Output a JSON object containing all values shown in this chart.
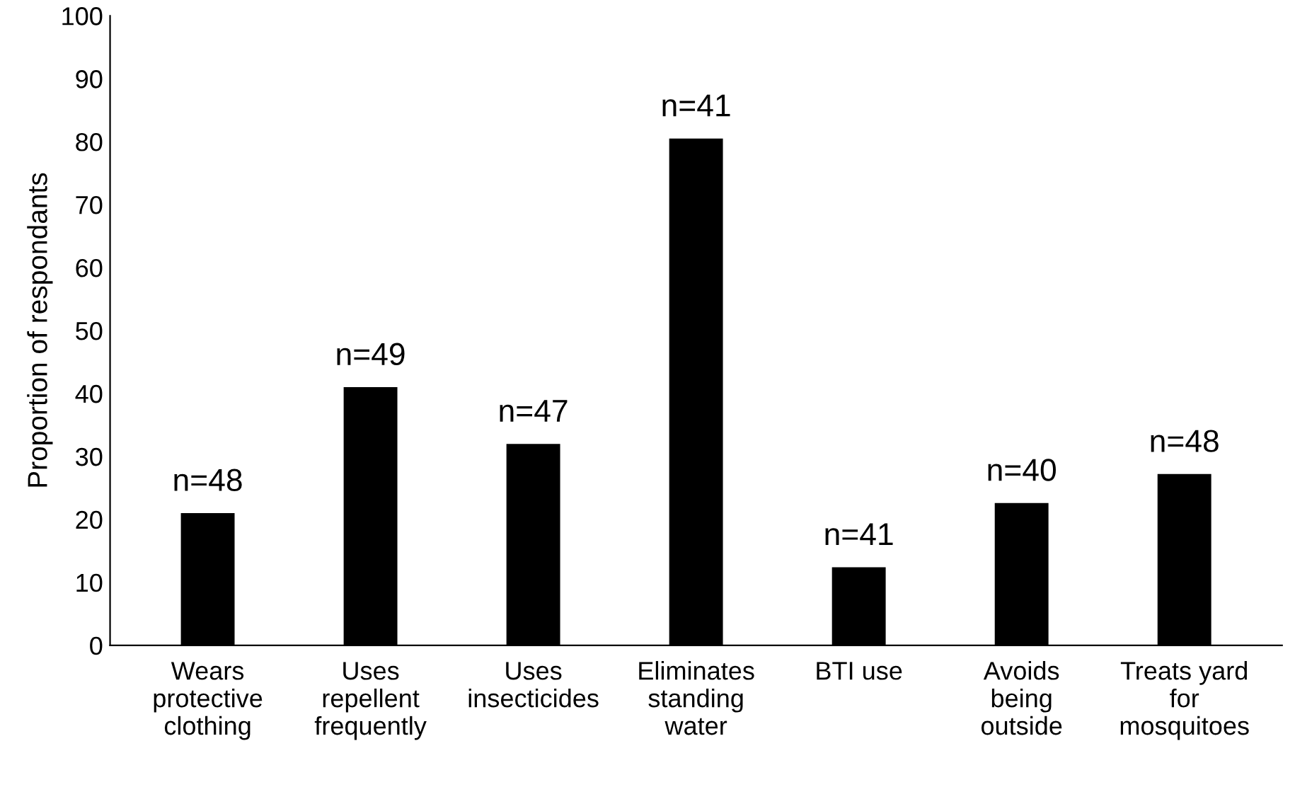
{
  "chart_data": {
    "type": "bar",
    "ylabel": "Proportion of respondants",
    "categories": [
      "Wears\nprotective\nclothing",
      "Uses\nrepellent\nfrequently",
      "Uses\ninsecticides",
      "Eliminates\nstanding\nwater",
      "BTI use",
      "Avoids\nbeing\noutside",
      "Treats yard\nfor\nmosquitoes"
    ],
    "values": [
      21,
      41,
      32,
      80.5,
      12.4,
      22.6,
      27.2
    ],
    "annotations": [
      {
        "text": "n=48",
        "x": "Wears\nprotective\nclothing",
        "y": 21
      },
      {
        "text": "n=49",
        "x": "Uses\nrepellent\nfrequently",
        "y": 41
      },
      {
        "text": "n=47",
        "x": "Uses\ninsecticides",
        "y": 32
      },
      {
        "text": "n=41",
        "x": "Eliminates\nstanding\nwater",
        "y": 80.5
      },
      {
        "text": "n=41",
        "x": "BTI use",
        "y": 12.4
      },
      {
        "text": "n=40",
        "x": "Avoids\nbeing\noutside",
        "y": 22.6
      },
      {
        "text": "n=48",
        "x": "Treats yard\nfor\nmosquitoes",
        "y": 27.2
      }
    ],
    "color": "#000000",
    "ylim": [
      0,
      100
    ],
    "yticks": [
      0,
      10,
      20,
      30,
      40,
      50,
      60,
      70,
      80,
      90,
      100
    ],
    "grid": false,
    "legend": false
  }
}
